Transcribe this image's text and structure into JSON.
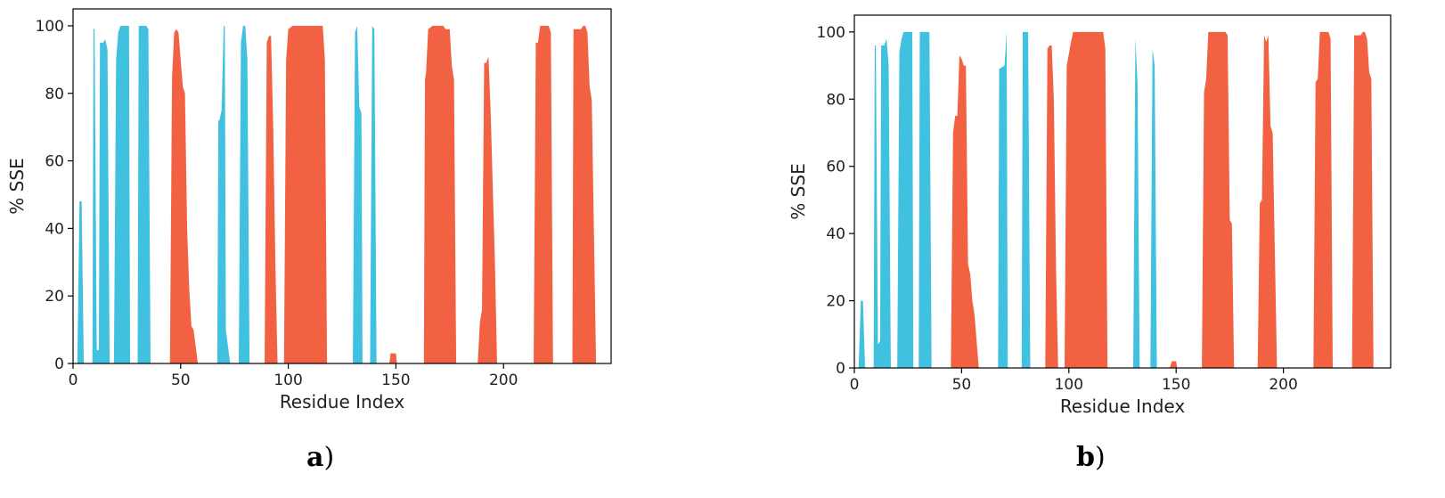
{
  "colors": {
    "helix": "#f26141",
    "strand": "#40c1e0",
    "axis": "#000000"
  },
  "panels": [
    {
      "label_letter": "a",
      "label_paren": ")",
      "chart_data": {
        "type": "area",
        "xlabel": "Residue Index",
        "ylabel": "% SSE",
        "xlim": [
          0,
          250
        ],
        "ylim": [
          0,
          105
        ],
        "xticks": [
          0,
          50,
          100,
          150,
          200
        ],
        "yticks": [
          0,
          20,
          40,
          60,
          80,
          100
        ],
        "grid": false,
        "series": [
          {
            "color": "#40c1e0",
            "points": [
              [
                2,
                0
              ],
              [
                3,
                48
              ],
              [
                4,
                48
              ],
              [
                5,
                0
              ],
              [
                9,
                0
              ],
              [
                9.5,
                99
              ],
              [
                10,
                99
              ],
              [
                11,
                4
              ],
              [
                12,
                4
              ],
              [
                12.5,
                95
              ],
              [
                14,
                95
              ],
              [
                15,
                96
              ],
              [
                16,
                93
              ],
              [
                17,
                0
              ],
              [
                19,
                0
              ],
              [
                20,
                90
              ],
              [
                21,
                98
              ],
              [
                22,
                100
              ],
              [
                26,
                100
              ],
              [
                26.5,
                0
              ],
              [
                30,
                0
              ],
              [
                30.5,
                100
              ],
              [
                34,
                100
              ],
              [
                35,
                99
              ],
              [
                36,
                0
              ],
              [
                67,
                0
              ],
              [
                67.5,
                72
              ],
              [
                68,
                72
              ],
              [
                69,
                75
              ],
              [
                70,
                100
              ],
              [
                70.5,
                100
              ],
              [
                71,
                10
              ],
              [
                73,
                0
              ],
              [
                77,
                0
              ],
              [
                78,
                95
              ],
              [
                79,
                100
              ],
              [
                80,
                100
              ],
              [
                81,
                90
              ],
              [
                82,
                0
              ],
              [
                130,
                0
              ],
              [
                131,
                98
              ],
              [
                132,
                100
              ],
              [
                133,
                76
              ],
              [
                134,
                74
              ],
              [
                134.5,
                0
              ],
              [
                138,
                0
              ],
              [
                139,
                100
              ],
              [
                140,
                99
              ],
              [
                141,
                0
              ]
            ]
          },
          {
            "color": "#f26141",
            "points": [
              [
                45,
                0
              ],
              [
                46,
                85
              ],
              [
                47,
                98
              ],
              [
                48,
                99
              ],
              [
                49,
                98
              ],
              [
                50,
                90
              ],
              [
                51,
                82
              ],
              [
                52,
                80
              ],
              [
                53,
                40
              ],
              [
                54,
                22
              ],
              [
                55,
                11
              ],
              [
                56,
                10
              ],
              [
                57,
                5
              ],
              [
                58,
                0
              ],
              [
                89,
                0
              ],
              [
                90,
                95
              ],
              [
                91,
                97
              ],
              [
                92,
                97
              ],
              [
                93,
                70
              ],
              [
                94,
                30
              ],
              [
                95,
                0
              ],
              [
                98,
                0
              ],
              [
                99,
                90
              ],
              [
                100,
                99
              ],
              [
                102,
                100
              ],
              [
                116,
                100
              ],
              [
                117,
                90
              ],
              [
                118,
                0
              ],
              [
                147,
                0
              ],
              [
                147.5,
                3
              ],
              [
                150,
                3
              ],
              [
                150.5,
                0
              ],
              [
                163,
                0
              ],
              [
                163.5,
                84
              ],
              [
                164,
                86
              ],
              [
                165,
                99
              ],
              [
                167,
                100
              ],
              [
                172,
                100
              ],
              [
                173,
                99
              ],
              [
                175,
                99
              ],
              [
                176,
                88
              ],
              [
                177,
                84
              ],
              [
                178,
                0
              ],
              [
                188,
                0
              ],
              [
                189,
                12
              ],
              [
                190,
                16
              ],
              [
                191,
                89
              ],
              [
                192,
                89
              ],
              [
                193,
                91
              ],
              [
                194,
                75
              ],
              [
                196,
                30
              ],
              [
                197,
                0
              ],
              [
                214,
                0
              ],
              [
                215,
                95
              ],
              [
                216,
                95
              ],
              [
                217,
                100
              ],
              [
                221,
                100
              ],
              [
                222,
                98
              ],
              [
                223,
                0
              ],
              [
                232,
                0
              ],
              [
                232.5,
                99
              ],
              [
                236,
                99
              ],
              [
                237,
                100
              ],
              [
                238,
                100
              ],
              [
                239,
                98
              ],
              [
                240,
                82
              ],
              [
                241,
                78
              ],
              [
                243,
                0
              ]
            ]
          }
        ]
      }
    },
    {
      "label_letter": "b",
      "label_paren": ")",
      "chart_data": {
        "type": "area",
        "xlabel": "Residue Index",
        "ylabel": "% SSE",
        "xlim": [
          0,
          250
        ],
        "ylim": [
          0,
          105
        ],
        "xticks": [
          0,
          50,
          100,
          150,
          200
        ],
        "yticks": [
          0,
          20,
          40,
          60,
          80,
          100
        ],
        "grid": false,
        "series": [
          {
            "color": "#40c1e0",
            "points": [
              [
                2,
                0
              ],
              [
                3,
                20
              ],
              [
                4,
                20
              ],
              [
                5,
                0
              ],
              [
                9,
                0
              ],
              [
                9.5,
                96
              ],
              [
                10,
                96
              ],
              [
                11,
                7
              ],
              [
                12,
                8
              ],
              [
                12.5,
                96
              ],
              [
                14,
                96
              ],
              [
                15,
                98
              ],
              [
                16,
                90
              ],
              [
                17,
                0
              ],
              [
                20,
                0
              ],
              [
                21,
                94
              ],
              [
                22,
                98
              ],
              [
                23,
                100
              ],
              [
                27,
                100
              ],
              [
                27.5,
                0
              ],
              [
                30,
                0
              ],
              [
                30.5,
                100
              ],
              [
                35,
                100
              ],
              [
                36,
                0
              ],
              [
                67,
                0
              ],
              [
                67.5,
                89
              ],
              [
                70,
                90
              ],
              [
                71,
                100
              ],
              [
                71.5,
                0
              ],
              [
                78,
                0
              ],
              [
                78.5,
                100
              ],
              [
                81,
                100
              ],
              [
                82,
                0
              ],
              [
                130,
                0
              ],
              [
                131,
                98
              ],
              [
                132,
                85
              ],
              [
                133,
                0
              ],
              [
                138,
                0
              ],
              [
                139,
                95
              ],
              [
                140,
                90
              ],
              [
                141,
                0
              ]
            ]
          },
          {
            "color": "#f26141",
            "points": [
              [
                45,
                0
              ],
              [
                46,
                70
              ],
              [
                47,
                75
              ],
              [
                48,
                75
              ],
              [
                49,
                93
              ],
              [
                50,
                92
              ],
              [
                51,
                90
              ],
              [
                52,
                90
              ],
              [
                53,
                31
              ],
              [
                54,
                28
              ],
              [
                55,
                20
              ],
              [
                56,
                16
              ],
              [
                58,
                0
              ],
              [
                89,
                0
              ],
              [
                90,
                95
              ],
              [
                91,
                96
              ],
              [
                92,
                96
              ],
              [
                93,
                80
              ],
              [
                94,
                30
              ],
              [
                95,
                0
              ],
              [
                98,
                0
              ],
              [
                99,
                90
              ],
              [
                101,
                97
              ],
              [
                102,
                100
              ],
              [
                116,
                100
              ],
              [
                117,
                95
              ],
              [
                118,
                0
              ],
              [
                147,
                0
              ],
              [
                148,
                2
              ],
              [
                150,
                2
              ],
              [
                150.5,
                0
              ],
              [
                162,
                0
              ],
              [
                163,
                82
              ],
              [
                164,
                86
              ],
              [
                165,
                100
              ],
              [
                173,
                100
              ],
              [
                174,
                99
              ],
              [
                175,
                44
              ],
              [
                176,
                43
              ],
              [
                177,
                0
              ],
              [
                188,
                0
              ],
              [
                189,
                49
              ],
              [
                190,
                50
              ],
              [
                191,
                99
              ],
              [
                192,
                97
              ],
              [
                193,
                99
              ],
              [
                194,
                72
              ],
              [
                195,
                70
              ],
              [
                197,
                0
              ],
              [
                214,
                0
              ],
              [
                215,
                85
              ],
              [
                216,
                86
              ],
              [
                217,
                100
              ],
              [
                221,
                100
              ],
              [
                222,
                98
              ],
              [
                223,
                0
              ],
              [
                232,
                0
              ],
              [
                233,
                99
              ],
              [
                236,
                99
              ],
              [
                237,
                100
              ],
              [
                238,
                100
              ],
              [
                239,
                98
              ],
              [
                240,
                88
              ],
              [
                241,
                86
              ],
              [
                242,
                0
              ]
            ]
          }
        ]
      }
    }
  ]
}
